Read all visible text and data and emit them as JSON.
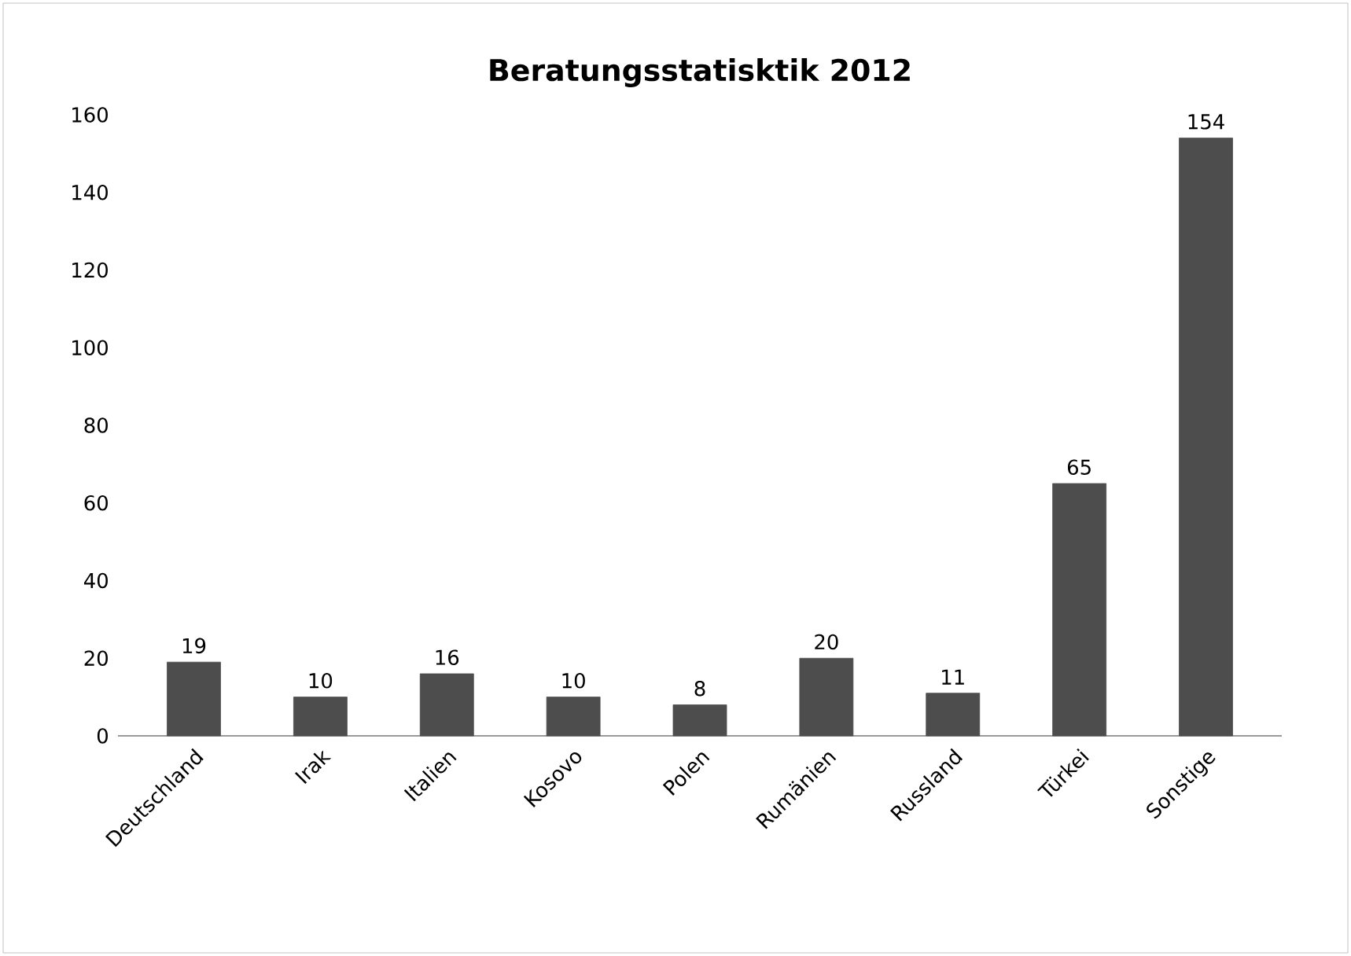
{
  "chart_data": {
    "type": "bar",
    "title": "Beratungsstatisktik  2012",
    "categories": [
      "Deutschland",
      "Irak",
      "Italien",
      "Kosovo",
      "Polen",
      "Rumänien",
      "Russland",
      "Türkei",
      "Sonstige"
    ],
    "values": [
      19,
      10,
      16,
      10,
      8,
      20,
      11,
      65,
      154
    ],
    "color": "#4d4d4d",
    "ylim": [
      0,
      160
    ],
    "yticks": [
      0,
      20,
      40,
      60,
      80,
      100,
      120,
      140,
      160
    ],
    "data_labels": true
  }
}
